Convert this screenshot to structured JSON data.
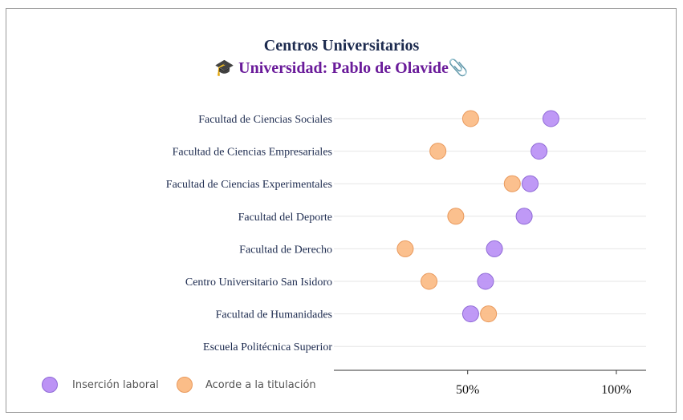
{
  "header": {
    "title": "Centros Universitarios",
    "subtitle_prefix_icon": "🎓",
    "subtitle": "Universidad: Pablo de Olavide",
    "subtitle_suffix_icon": "📎"
  },
  "colors": {
    "insercion": "#bc93f5",
    "insercion_stroke": "#8f6ad6",
    "acorde": "#fbbd88",
    "acorde_stroke": "#e9995c",
    "grid": "#e6e6e6",
    "axis": "#333333",
    "label_text": "#1d2b4f"
  },
  "legend": {
    "items": [
      {
        "label": "Inserción laboral",
        "color": "#bc93f5"
      },
      {
        "label": "Acorde a la titulación",
        "color": "#fbbd88"
      }
    ]
  },
  "chart_data": {
    "type": "scatter",
    "orientation": "horizontal-dot",
    "categories": [
      "Facultad de Ciencias Sociales",
      "Facultad de Ciencias Empresariales",
      "Facultad de Ciencias Experimentales",
      "Facultad del Deporte",
      "Facultad de Derecho",
      "Centro Universitario San Isidoro",
      "Facultad de Humanidades",
      "Escuela Politécnica Superior"
    ],
    "series": [
      {
        "name": "Inserción laboral",
        "values": [
          78,
          74,
          71,
          69,
          59,
          56,
          51,
          null
        ]
      },
      {
        "name": "Acorde a la titulación",
        "values": [
          51,
          40,
          65,
          46,
          29,
          37,
          57,
          null
        ]
      }
    ],
    "xlim": [
      5,
      110
    ],
    "xticks": [
      50,
      100
    ],
    "xtick_labels": [
      "50%",
      "100%"
    ],
    "grid": true,
    "legend_position": "bottom-left"
  }
}
